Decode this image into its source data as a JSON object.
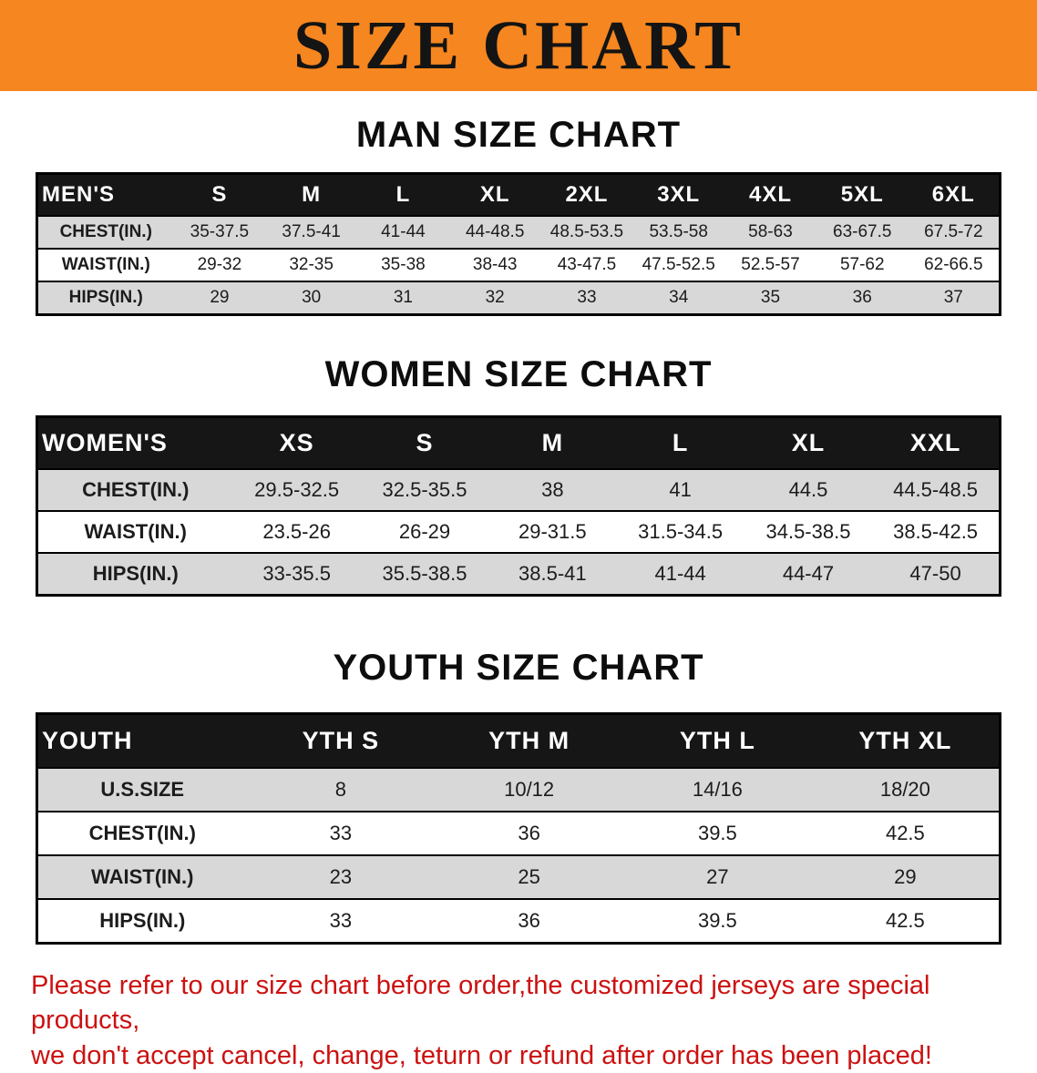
{
  "banner": {
    "title": "SIZE CHART",
    "bg_color": "#f6861f"
  },
  "sections": [
    {
      "id": "men",
      "heading": "MAN SIZE CHART",
      "table": {
        "title": "MEN'S",
        "columns": [
          "S",
          "M",
          "L",
          "XL",
          "2XL",
          "3XL",
          "4XL",
          "5XL",
          "6XL"
        ],
        "rows": [
          {
            "label": "CHEST(IN.)",
            "values": [
              "35-37.5",
              "37.5-41",
              "41-44",
              "44-48.5",
              "48.5-53.5",
              "53.5-58",
              "58-63",
              "63-67.5",
              "67.5-72"
            ]
          },
          {
            "label": "WAIST(IN.)",
            "values": [
              "29-32",
              "32-35",
              "35-38",
              "38-43",
              "43-47.5",
              "47.5-52.5",
              "52.5-57",
              "57-62",
              "62-66.5"
            ]
          },
          {
            "label": "HIPS(IN.)",
            "values": [
              "29",
              "30",
              "31",
              "32",
              "33",
              "34",
              "35",
              "36",
              "37"
            ]
          }
        ]
      }
    },
    {
      "id": "women",
      "heading": "WOMEN SIZE CHART",
      "table": {
        "title": "WOMEN'S",
        "columns": [
          "XS",
          "S",
          "M",
          "L",
          "XL",
          "XXL"
        ],
        "rows": [
          {
            "label": "CHEST(IN.)",
            "values": [
              "29.5-32.5",
              "32.5-35.5",
              "38",
              "41",
              "44.5",
              "44.5-48.5"
            ]
          },
          {
            "label": "WAIST(IN.)",
            "values": [
              "23.5-26",
              "26-29",
              "29-31.5",
              "31.5-34.5",
              "34.5-38.5",
              "38.5-42.5"
            ]
          },
          {
            "label": "HIPS(IN.)",
            "values": [
              "33-35.5",
              "35.5-38.5",
              "38.5-41",
              "41-44",
              "44-47",
              "47-50"
            ]
          }
        ]
      }
    },
    {
      "id": "youth",
      "heading": "YOUTH SIZE CHART",
      "table": {
        "title": "YOUTH",
        "columns": [
          "YTH S",
          "YTH M",
          "YTH L",
          "YTH XL"
        ],
        "rows": [
          {
            "label": "U.S.SIZE",
            "values": [
              "8",
              "10/12",
              "14/16",
              "18/20"
            ]
          },
          {
            "label": "CHEST(IN.)",
            "values": [
              "33",
              "36",
              "39.5",
              "42.5"
            ]
          },
          {
            "label": "WAIST(IN.)",
            "values": [
              "23",
              "25",
              "27",
              "29"
            ]
          },
          {
            "label": "HIPS(IN.)",
            "values": [
              "33",
              "36",
              "39.5",
              "42.5"
            ]
          }
        ]
      }
    }
  ],
  "disclaimer": {
    "color": "#cc1111",
    "lines": [
      "Please refer to our size chart before order,the customized jerseys are special products,",
      "we don't accept cancel, change, teturn or refund after order has been placed!"
    ]
  }
}
